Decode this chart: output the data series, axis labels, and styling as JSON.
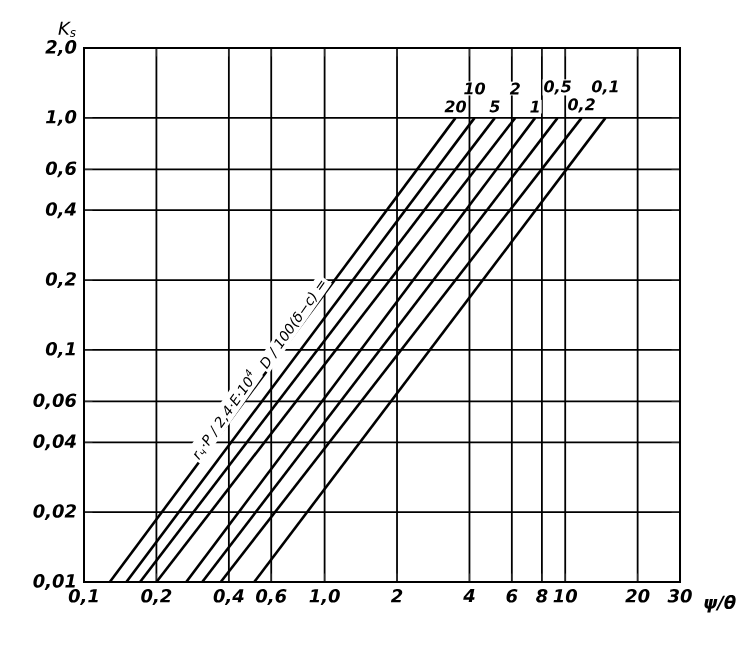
{
  "chart_data": {
    "type": "line",
    "xlabel": "ψ/θ",
    "ylabel": "K$_{s}$",
    "log": "xy",
    "grid": true,
    "legend": false,
    "marker": "none",
    "line_style": "solid",
    "xlim": [
      0.1,
      30
    ],
    "ylim": [
      0.01,
      2.0
    ],
    "xticks": [
      {
        "value": 0.1,
        "label": "0,1"
      },
      {
        "value": 0.2,
        "label": "0,2"
      },
      {
        "value": 0.4,
        "label": "0,4"
      },
      {
        "value": 0.6,
        "label": "0,6"
      },
      {
        "value": 1.0,
        "label": "1,0"
      },
      2,
      4,
      6,
      8,
      10,
      20,
      30
    ],
    "yticks": [
      {
        "value": 0.01,
        "label": "0,01"
      },
      {
        "value": 0.02,
        "label": "0,02"
      },
      {
        "value": 0.04,
        "label": "0,04"
      },
      {
        "value": 0.06,
        "label": "0,06"
      },
      {
        "value": 0.1,
        "label": "0,1"
      },
      {
        "value": 0.2,
        "label": "0,2"
      },
      {
        "value": 0.4,
        "label": "0,4"
      },
      {
        "value": 0.6,
        "label": "0,6"
      },
      {
        "value": 1.0,
        "label": "1,0"
      },
      {
        "value": 2.0,
        "label": "2,0"
      }
    ],
    "annotations": [
      "D / 100(δ−c) =",
      "r$_{ч}$·P / 2,4·E·10$^{4}$"
    ],
    "series": [
      {
        "name": "20",
        "color": "#000000",
        "x": [
          0.128,
          3.5
        ],
        "values": [
          0.01,
          1.0
        ]
      },
      {
        "name": "10",
        "color": "#000000",
        "x": [
          0.15,
          4.2
        ],
        "values": [
          0.01,
          1.0
        ]
      },
      {
        "name": "5",
        "color": "#000000",
        "x": [
          0.171,
          5.1
        ],
        "values": [
          0.01,
          1.0
        ]
      },
      {
        "name": "2",
        "color": "#000000",
        "x": [
          0.2,
          6.2
        ],
        "values": [
          0.01,
          1.0
        ]
      },
      {
        "name": "1",
        "color": "#000000",
        "x": [
          0.266,
          7.5
        ],
        "values": [
          0.01,
          1.0
        ]
      },
      {
        "name": "0,5",
        "color": "#000000",
        "x": [
          0.31,
          9.3
        ],
        "values": [
          0.01,
          1.0
        ]
      },
      {
        "name": "0,2",
        "color": "#000000",
        "x": [
          0.37,
          11.7
        ],
        "values": [
          0.01,
          1.0
        ]
      },
      {
        "name": "0,1",
        "color": "#000000",
        "x": [
          0.51,
          14.7
        ],
        "values": [
          0.01,
          1.0
        ]
      }
    ]
  }
}
